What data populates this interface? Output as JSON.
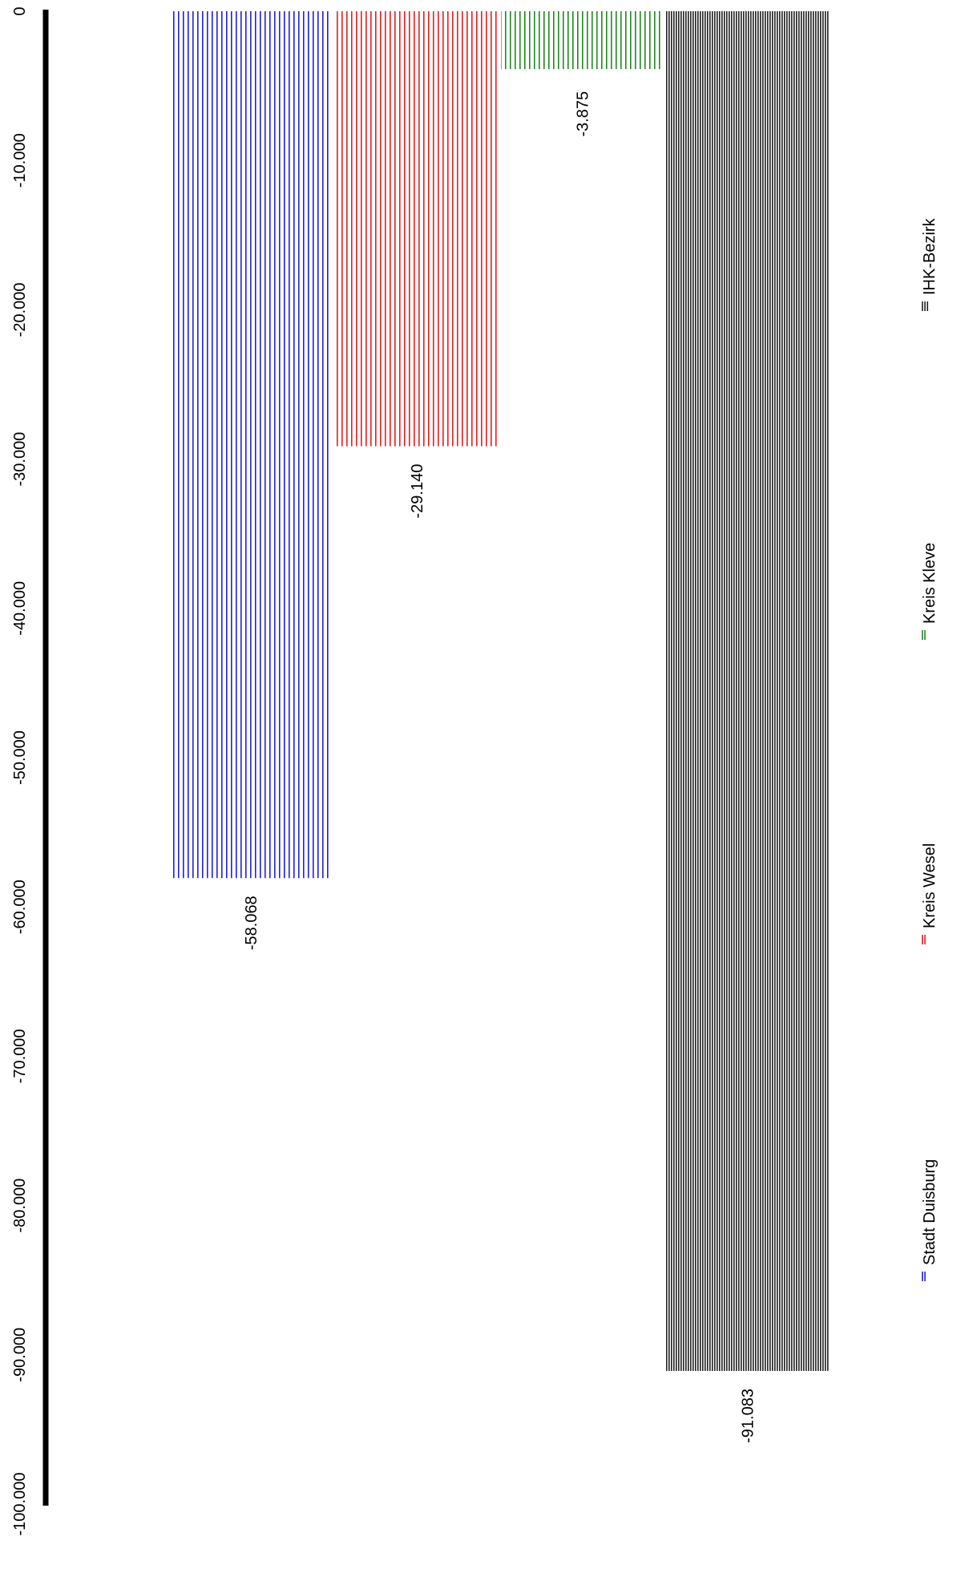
{
  "chart_data": {
    "type": "bar",
    "orientation": "rotated-90-clockwise",
    "categories": [
      "Stadt Duisburg",
      "Kreis Wesel",
      "Kreis Kleve",
      "IHK-Bezirk"
    ],
    "values": [
      -58068,
      -29140,
      -3875,
      -91083
    ],
    "data_labels": [
      "-58.068",
      "-29.140",
      "-3.875",
      "-91.083"
    ],
    "ylim": [
      -100000,
      0
    ],
    "ticks": [
      {
        "value": 0,
        "label": "0"
      },
      {
        "value": -10000,
        "label": "-10.000"
      },
      {
        "value": -20000,
        "label": "-20.000"
      },
      {
        "value": -30000,
        "label": "-30.000"
      },
      {
        "value": -40000,
        "label": "-40.000"
      },
      {
        "value": -50000,
        "label": "-50.000"
      },
      {
        "value": -60000,
        "label": "-60.000"
      },
      {
        "value": -70000,
        "label": "-70.000"
      },
      {
        "value": -80000,
        "label": "-80.000"
      },
      {
        "value": -90000,
        "label": "-90.000"
      },
      {
        "value": -100000,
        "label": "-100.000"
      }
    ],
    "colors": [
      "#2222cc",
      "#dd2222",
      "#228822",
      "#222222"
    ],
    "grid": false,
    "legend": {
      "position": "right",
      "entries": [
        "Stadt Duisburg",
        "Kreis Wesel",
        "Kreis Kleve",
        "IHK-Bezirk"
      ]
    }
  }
}
